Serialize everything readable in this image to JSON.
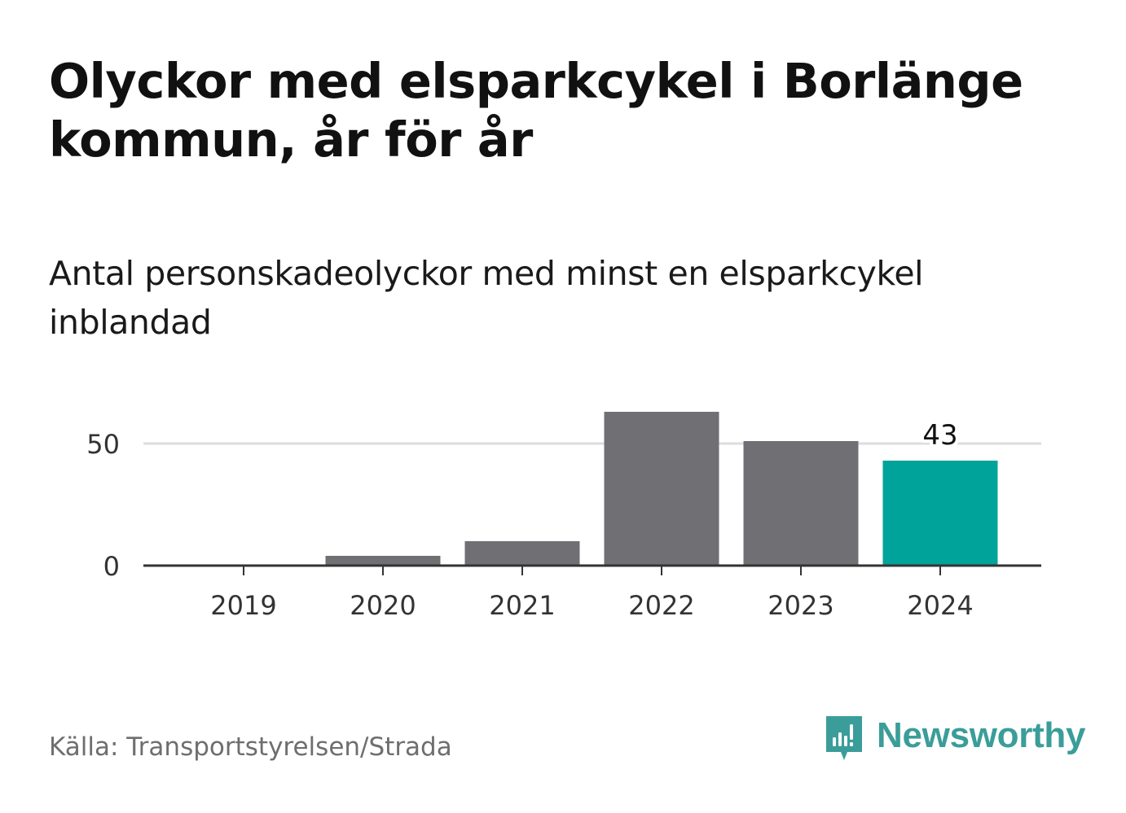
{
  "title": "Olyckor med elsparkcykel i Borlänge kommun, år för år",
  "subtitle": "Antal personskadeolyckor med minst en elsparkcykel inblandad",
  "source": "Källa: Transportstyrelsen/Strada",
  "brand": {
    "name": "Newsworthy",
    "icon": "newsworthy-logo-icon",
    "color": "#3b9d99"
  },
  "colors": {
    "bar": "#707074",
    "highlight": "#00a39a",
    "grid": "#dddddd",
    "axis": "#333333",
    "tick_text": "#333333"
  },
  "chart_data": {
    "type": "bar",
    "title": "Olyckor med elsparkcykel i Borlänge kommun, år för år",
    "subtitle": "Antal personskadeolyckor med minst en elsparkcykel inblandad",
    "xlabel": "",
    "ylabel": "",
    "categories": [
      "2019",
      "2020",
      "2021",
      "2022",
      "2023",
      "2024"
    ],
    "values": [
      0,
      4,
      10,
      63,
      51,
      43
    ],
    "highlight_index": 5,
    "data_labels": [
      {
        "index": 5,
        "text": "43"
      }
    ],
    "yticks": [
      0,
      50
    ],
    "ylim": [
      0,
      63
    ],
    "grid": true,
    "legend": "none"
  }
}
